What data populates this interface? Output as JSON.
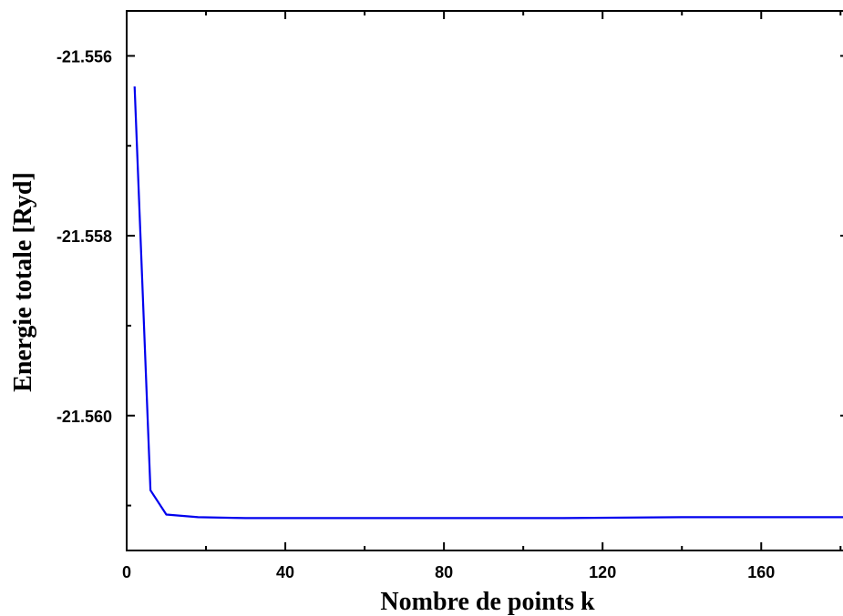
{
  "chart_data": {
    "type": "line",
    "title": "",
    "xlabel": "Nombre de points k",
    "ylabel": "Energie totale [Ryd]",
    "xlim": [
      0,
      182
    ],
    "ylim": [
      -21.5615,
      -21.5555
    ],
    "x_ticks": [
      {
        "value": 0,
        "label": "0"
      },
      {
        "value": 40,
        "label": "40"
      },
      {
        "value": 80,
        "label": "80"
      },
      {
        "value": 120,
        "label": "120"
      },
      {
        "value": 160,
        "label": "160"
      }
    ],
    "y_ticks": [
      {
        "value": -21.556,
        "label": "-21.556"
      },
      {
        "value": -21.558,
        "label": "-21.558"
      },
      {
        "value": -21.56,
        "label": "-21.560"
      }
    ],
    "x_minor_ticks": [
      20,
      60,
      100,
      140,
      180
    ],
    "y_minor_ticks": [
      -21.557,
      -21.559,
      -21.561
    ],
    "grid": false,
    "series": [
      {
        "color": "#0000ee",
        "x": [
          2,
          6,
          10,
          18,
          30,
          60,
          80,
          110,
          140,
          182
        ],
        "y": [
          -21.55634,
          -21.56083,
          -21.5611,
          -21.56113,
          -21.56114,
          -21.56114,
          -21.56114,
          -21.56114,
          -21.56113,
          -21.56113
        ]
      }
    ]
  }
}
